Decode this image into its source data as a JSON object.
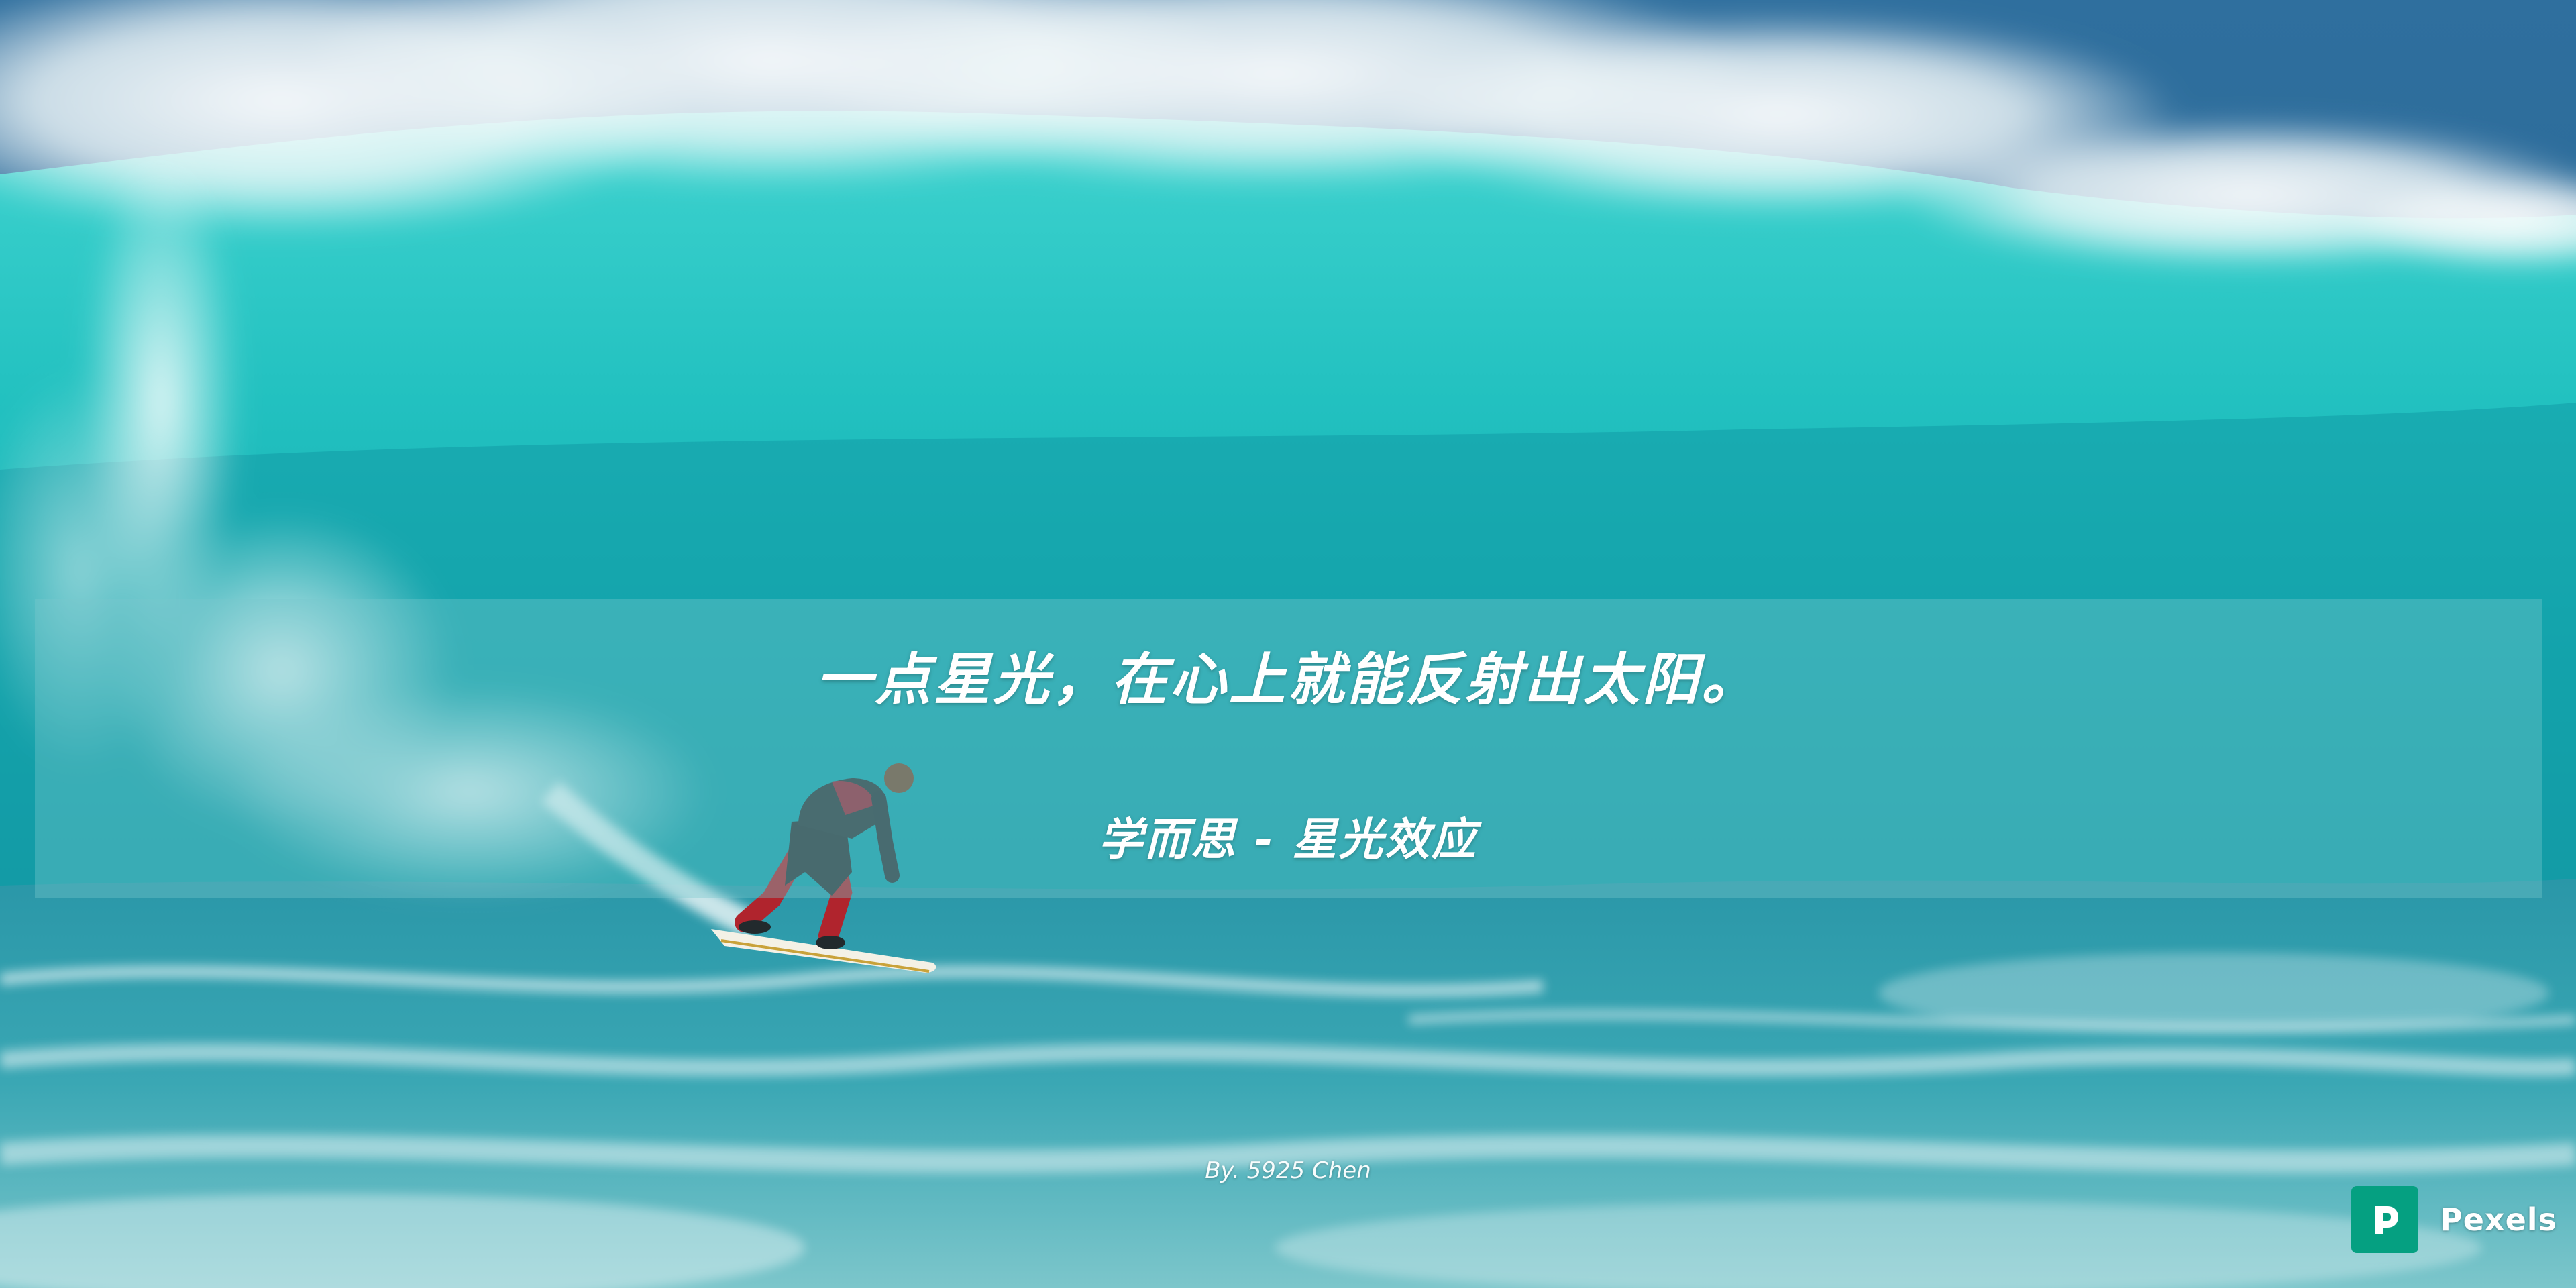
{
  "quote": {
    "text": "一点星光，在心上就能反射出太阳。",
    "source": "学而思 - 星光效应"
  },
  "byline": "By. 5925 Chen",
  "brand": {
    "name": "Pexels",
    "color": "#05A081"
  },
  "colors": {
    "wave_turquoise": "#1ec2c2",
    "deep_ocean": "#1a5f8c",
    "foam": "#ffffff"
  },
  "image": {
    "subject": "surfer riding a large turquoise wave"
  }
}
